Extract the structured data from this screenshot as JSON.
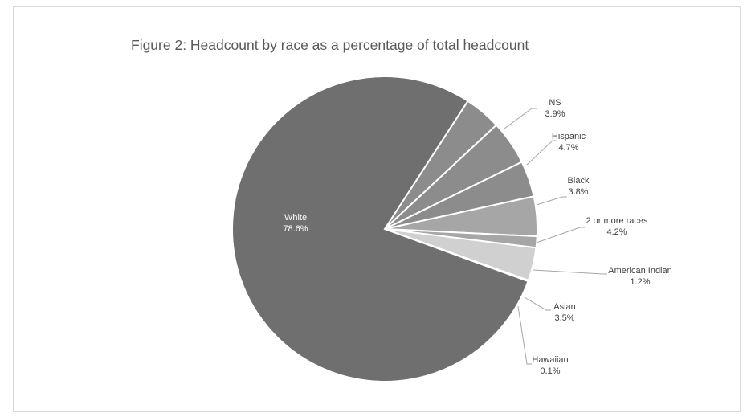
{
  "chart_data": {
    "type": "pie",
    "title": "Figure 2: Headcount by race as a percentage of total headcount",
    "slices": [
      {
        "label": "NS",
        "value_label": "3.9%",
        "value": 3.9,
        "color": "#8c8c8c"
      },
      {
        "label": "Hispanic",
        "value_label": "4.7%",
        "value": 4.7,
        "color": "#8c8c8c"
      },
      {
        "label": "Black",
        "value_label": "3.8%",
        "value": 3.8,
        "color": "#8c8c8c"
      },
      {
        "label": "2 or more races",
        "value_label": "4.2%",
        "value": 4.2,
        "color": "#a6a6a6"
      },
      {
        "label": "American Indian",
        "value_label": "1.2%",
        "value": 1.2,
        "color": "#a6a6a6"
      },
      {
        "label": "Asian",
        "value_label": "3.5%",
        "value": 3.5,
        "color": "#d0d0d0"
      },
      {
        "label": "Hawaiian",
        "value_label": "0.1%",
        "value": 0.1,
        "color": "#d0d0d0"
      },
      {
        "label": "White",
        "value_label": "78.6%",
        "value": 78.6,
        "color": "#6f6f6f"
      }
    ],
    "start_angle_deg": 33,
    "legend": "none"
  }
}
